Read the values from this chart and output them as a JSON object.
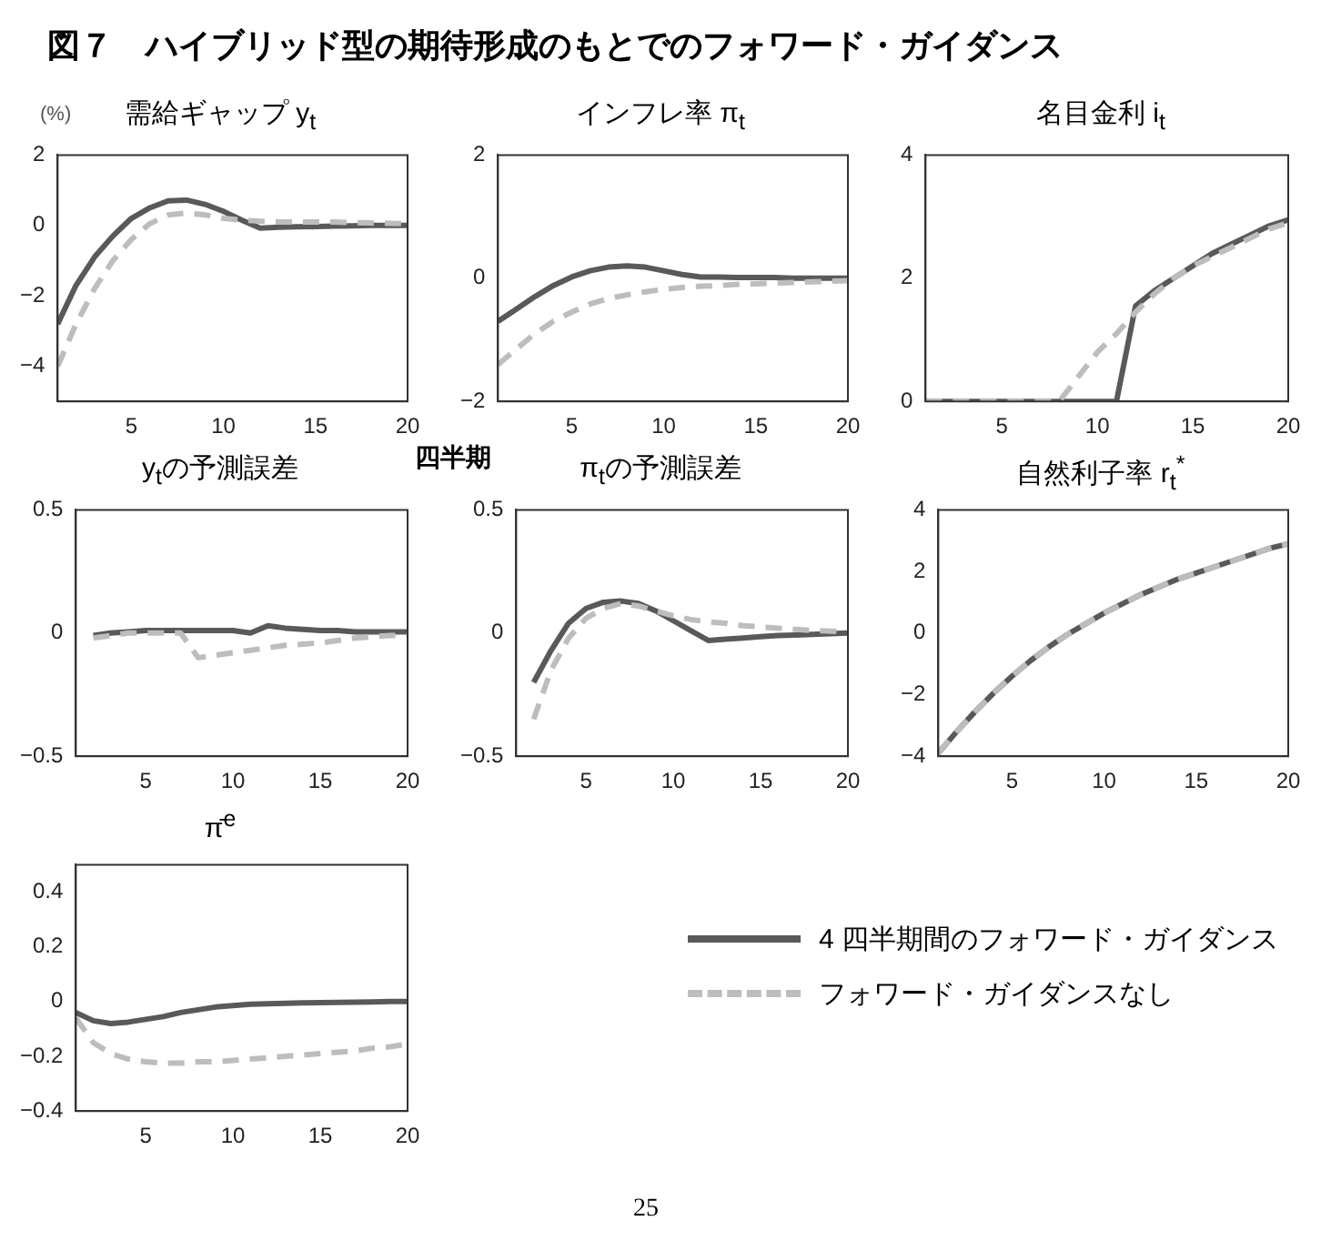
{
  "chart_data": [
    {
      "type": "line",
      "title": "需給ギャップ y$_{t}$",
      "ylabel": "(%)",
      "annotations": [
        "図７　ハイブリッド型の期待形成のもとでのフォワード・ガイダンス"
      ],
      "x": [
        1,
        2,
        3,
        4,
        5,
        6,
        7,
        8,
        9,
        10,
        11,
        12,
        13,
        14,
        15,
        16,
        17,
        18,
        19,
        20
      ],
      "xlim": [
        1,
        20
      ],
      "xticks": [
        5,
        10,
        15,
        20
      ],
      "ylim": [
        -5,
        2
      ],
      "yticks": [
        {
          "value": -4,
          "label": "−4"
        },
        {
          "value": -2,
          "label": "−2"
        },
        0,
        2
      ],
      "series": [
        {
          "color": "#595959",
          "line_style": "solid",
          "values": [
            -2.8,
            -1.7,
            -0.9,
            -0.3,
            0.2,
            0.5,
            0.7,
            0.72,
            0.6,
            0.4,
            0.15,
            -0.08,
            -0.05,
            -0.04,
            -0.03,
            -0.02,
            -0.01,
            0,
            0,
            0
          ]
        },
        {
          "color": "#bdbdbd",
          "line_style": "dashed",
          "values": [
            -4.0,
            -2.8,
            -1.8,
            -1.0,
            -0.4,
            0.05,
            0.3,
            0.35,
            0.3,
            0.2,
            0.15,
            0.12,
            0.1,
            0.1,
            0.1,
            0.1,
            0.08,
            0.07,
            0.06,
            0.05
          ]
        }
      ]
    },
    {
      "type": "line",
      "title": "インフレ率 π$_{t}$",
      "xlabel": "四半期",
      "x": [
        1,
        2,
        3,
        4,
        5,
        6,
        7,
        8,
        9,
        10,
        11,
        12,
        13,
        14,
        15,
        16,
        17,
        18,
        19,
        20
      ],
      "xlim": [
        1,
        20
      ],
      "xticks": [
        5,
        10,
        15,
        20
      ],
      "ylim": [
        -2,
        2
      ],
      "yticks": [
        {
          "value": -2,
          "label": "−2"
        },
        0,
        2
      ],
      "series": [
        {
          "color": "#595959",
          "line_style": "solid",
          "values": [
            -0.7,
            -0.5,
            -0.3,
            -0.12,
            0.02,
            0.12,
            0.18,
            0.2,
            0.18,
            0.12,
            0.06,
            0.02,
            0.02,
            0.01,
            0.01,
            0.01,
            0,
            0,
            0,
            0
          ]
        },
        {
          "color": "#bdbdbd",
          "line_style": "dashed",
          "values": [
            -1.4,
            -1.15,
            -0.9,
            -0.7,
            -0.55,
            -0.42,
            -0.33,
            -0.27,
            -0.22,
            -0.18,
            -0.15,
            -0.13,
            -0.12,
            -0.1,
            -0.09,
            -0.08,
            -0.07,
            -0.06,
            -0.05,
            -0.04
          ]
        }
      ]
    },
    {
      "type": "line",
      "title": "名目金利 i$_{t}$",
      "x": [
        1,
        2,
        3,
        4,
        5,
        6,
        7,
        8,
        9,
        10,
        11,
        12,
        13,
        14,
        15,
        16,
        17,
        18,
        19,
        20
      ],
      "xlim": [
        1,
        20
      ],
      "xticks": [
        5,
        10,
        15,
        20
      ],
      "ylim": [
        0,
        4
      ],
      "yticks": [
        0,
        2,
        4
      ],
      "series": [
        {
          "color": "#595959",
          "line_style": "solid",
          "values": [
            0,
            0,
            0,
            0,
            0,
            0,
            0,
            0,
            0,
            0,
            0,
            1.55,
            1.8,
            2.0,
            2.2,
            2.4,
            2.55,
            2.7,
            2.85,
            2.95
          ]
        },
        {
          "color": "#bdbdbd",
          "line_style": "dashed",
          "values": [
            0,
            0,
            0,
            0,
            0,
            0,
            0,
            0,
            0.4,
            0.8,
            1.1,
            1.45,
            1.75,
            2.0,
            2.2,
            2.35,
            2.5,
            2.65,
            2.8,
            2.9
          ]
        }
      ]
    },
    {
      "type": "line",
      "title": "y$_{t}$の予測誤差",
      "x": [
        2,
        3,
        4,
        5,
        6,
        7,
        8,
        9,
        10,
        11,
        12,
        13,
        14,
        15,
        16,
        17,
        18,
        19,
        20
      ],
      "xlim": [
        1,
        20
      ],
      "xticks": [
        5,
        10,
        15,
        20
      ],
      "ylim": [
        -0.5,
        0.5
      ],
      "yticks": [
        {
          "value": -0.5,
          "label": "−0.5"
        },
        0,
        0.5
      ],
      "series": [
        {
          "color": "#595959",
          "line_style": "solid",
          "values": [
            -0.01,
            0,
            0.005,
            0.01,
            0.01,
            0.01,
            0.01,
            0.01,
            0.01,
            0,
            0.03,
            0.02,
            0.015,
            0.01,
            0.01,
            0.005,
            0.005,
            0.005,
            0.005
          ]
        },
        {
          "color": "#bdbdbd",
          "line_style": "dashed",
          "values": [
            -0.02,
            -0.01,
            0,
            0,
            0,
            0,
            -0.1,
            -0.09,
            -0.08,
            -0.07,
            -0.06,
            -0.05,
            -0.045,
            -0.04,
            -0.03,
            -0.02,
            -0.015,
            -0.01,
            -0.01
          ]
        }
      ]
    },
    {
      "type": "line",
      "title": "π$_{t}$の予測誤差",
      "x": [
        2,
        3,
        4,
        5,
        6,
        7,
        8,
        9,
        10,
        11,
        12,
        13,
        14,
        15,
        16,
        17,
        18,
        19,
        20
      ],
      "xlim": [
        1,
        20
      ],
      "xticks": [
        5,
        10,
        15,
        20
      ],
      "ylim": [
        -0.5,
        0.5
      ],
      "yticks": [
        {
          "value": -0.5,
          "label": "−0.5"
        },
        0,
        0.5
      ],
      "series": [
        {
          "color": "#595959",
          "line_style": "solid",
          "values": [
            -0.2,
            -0.07,
            0.04,
            0.1,
            0.125,
            0.13,
            0.12,
            0.09,
            0.05,
            0.01,
            -0.03,
            -0.025,
            -0.02,
            -0.015,
            -0.01,
            -0.008,
            -0.005,
            -0.003,
            0
          ]
        },
        {
          "color": "#bdbdbd",
          "line_style": "dashed",
          "values": [
            -0.35,
            -0.15,
            -0.02,
            0.06,
            0.1,
            0.12,
            0.11,
            0.09,
            0.07,
            0.055,
            0.045,
            0.04,
            0.03,
            0.025,
            0.02,
            0.015,
            0.01,
            0.008,
            0.005
          ]
        }
      ]
    },
    {
      "type": "line",
      "title": "自然利子率 r$_{t}$$^{*}$",
      "x": [
        1,
        2,
        3,
        4,
        5,
        6,
        7,
        8,
        9,
        10,
        11,
        12,
        13,
        14,
        15,
        16,
        17,
        18,
        19,
        20
      ],
      "xlim": [
        1,
        20
      ],
      "xticks": [
        5,
        10,
        15,
        20
      ],
      "ylim": [
        -4,
        4
      ],
      "yticks": [
        {
          "value": -4,
          "label": "−4"
        },
        {
          "value": -2,
          "label": "−2"
        },
        0,
        2,
        4
      ],
      "series": [
        {
          "color": "#595959",
          "line_style": "solid",
          "values": [
            -3.9,
            -3.2,
            -2.55,
            -1.95,
            -1.4,
            -0.9,
            -0.45,
            -0.05,
            0.3,
            0.65,
            0.95,
            1.25,
            1.5,
            1.75,
            1.95,
            2.15,
            2.35,
            2.55,
            2.75,
            2.9
          ]
        },
        {
          "color": "#bdbdbd",
          "line_style": "dashed",
          "values": [
            -3.9,
            -3.2,
            -2.55,
            -1.95,
            -1.4,
            -0.9,
            -0.45,
            -0.05,
            0.3,
            0.65,
            0.95,
            1.25,
            1.5,
            1.75,
            1.95,
            2.15,
            2.35,
            2.55,
            2.75,
            2.9
          ]
        }
      ]
    },
    {
      "type": "line",
      "title": "π̄$^{e}$",
      "legend": "right",
      "annotations": [
        "25"
      ],
      "x": [
        1,
        2,
        3,
        4,
        5,
        6,
        7,
        8,
        9,
        10,
        11,
        12,
        13,
        14,
        15,
        16,
        17,
        18,
        19,
        20
      ],
      "xlim": [
        1,
        20
      ],
      "xticks": [
        5,
        10,
        15,
        20
      ],
      "ylim": [
        -0.4,
        0.5
      ],
      "yticks": [
        {
          "value": -0.4,
          "label": "−0.4"
        },
        {
          "value": -0.2,
          "label": "−0.2"
        },
        0,
        0.2,
        0.4
      ],
      "series": [
        {
          "name": "4 四半期間のフォワード・ガイダンス",
          "color": "#595959",
          "line_style": "solid",
          "values": [
            -0.04,
            -0.07,
            -0.08,
            -0.075,
            -0.065,
            -0.055,
            -0.04,
            -0.03,
            -0.02,
            -0.015,
            -0.01,
            -0.008,
            -0.006,
            -0.005,
            -0.004,
            -0.003,
            -0.002,
            -0.001,
            0,
            0
          ]
        },
        {
          "name": "フォワード・ガイダンスなし",
          "color": "#bdbdbd",
          "line_style": "dashed",
          "values": [
            -0.06,
            -0.15,
            -0.19,
            -0.21,
            -0.22,
            -0.225,
            -0.225,
            -0.22,
            -0.22,
            -0.215,
            -0.21,
            -0.205,
            -0.2,
            -0.195,
            -0.19,
            -0.185,
            -0.18,
            -0.17,
            -0.165,
            -0.155
          ]
        }
      ]
    }
  ]
}
